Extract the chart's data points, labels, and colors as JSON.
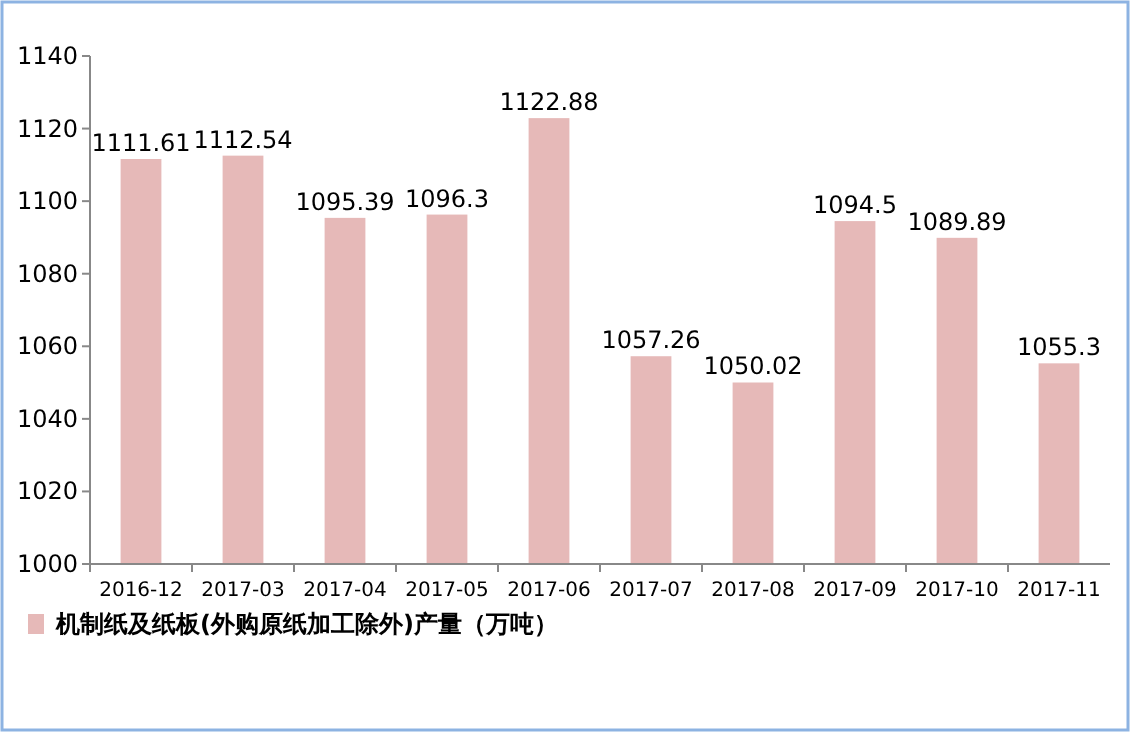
{
  "chart_data": {
    "type": "bar",
    "categories": [
      "2016-12",
      "2017-03",
      "2017-04",
      "2017-05",
      "2017-06",
      "2017-07",
      "2017-08",
      "2017-09",
      "2017-10",
      "2017-11"
    ],
    "series": [
      {
        "name": "机制纸及纸板(外购原纸加工除外)产量（万吨）",
        "color": "#e6b9b8",
        "values": [
          1111.61,
          1112.54,
          1095.39,
          1096.3,
          1122.88,
          1057.26,
          1050.02,
          1094.5,
          1089.89,
          1055.3
        ]
      }
    ],
    "ylim": [
      1000,
      1140
    ],
    "yticks": [
      1000,
      1020,
      1040,
      1060,
      1080,
      1100,
      1120,
      1140
    ],
    "data_labels": true,
    "grid": false,
    "legend": "bottom left"
  }
}
